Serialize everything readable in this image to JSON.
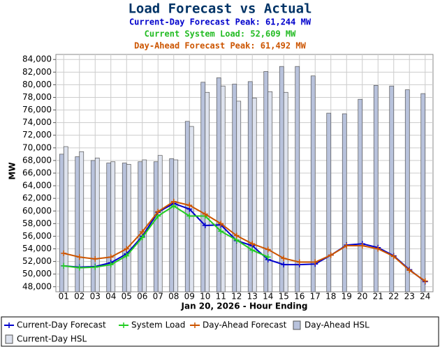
{
  "chart_data": {
    "type": "bar_line",
    "title": "Load Forecast vs Actual",
    "subtitles": [
      {
        "text": "Current-Day Forecast Peak:  61,244 MW",
        "color": "#0000cc"
      },
      {
        "text": "Current System Load:  52,609 MW",
        "color": "#22bb22"
      },
      {
        "text": "Day-Ahead Forecast Peak:  61,492 MW",
        "color": "#cc5500"
      }
    ],
    "x_label": "Jan 20, 2026 - Hour Ending",
    "y_label": "MW",
    "categories": [
      "01",
      "02",
      "03",
      "04",
      "05",
      "06",
      "07",
      "08",
      "09",
      "10",
      "11",
      "12",
      "13",
      "14",
      "15",
      "16",
      "17",
      "18",
      "19",
      "20",
      "21",
      "22",
      "23",
      "24"
    ],
    "ylim": [
      47200,
      84800
    ],
    "yticks": [
      {
        "value": 48000,
        "label": "48,000"
      },
      {
        "value": 50000,
        "label": "50,000"
      },
      {
        "value": 52000,
        "label": "52,000"
      },
      {
        "value": 54000,
        "label": "54,000"
      },
      {
        "value": 56000,
        "label": "56,000"
      },
      {
        "value": 58000,
        "label": "58,000"
      },
      {
        "value": 60000,
        "label": "60,000"
      },
      {
        "value": 62000,
        "label": "62,000"
      },
      {
        "value": 64000,
        "label": "64,000"
      },
      {
        "value": 66000,
        "label": "66,000"
      },
      {
        "value": 68000,
        "label": "68,000"
      },
      {
        "value": 70000,
        "label": "70,000"
      },
      {
        "value": 72000,
        "label": "72,000"
      },
      {
        "value": 74000,
        "label": "74,000"
      },
      {
        "value": 76000,
        "label": "76,000"
      },
      {
        "value": 78000,
        "label": "78,000"
      },
      {
        "value": 80000,
        "label": "80,000"
      },
      {
        "value": 82000,
        "label": "82,000"
      },
      {
        "value": 84000,
        "label": "84,000"
      }
    ],
    "series": [
      {
        "name": "Current-Day Forecast",
        "kind": "line",
        "color": "#0000cc",
        "values": [
          51300,
          51100,
          51200,
          51800,
          53200,
          56000,
          59800,
          61200,
          60300,
          57700,
          57800,
          55300,
          54500,
          52300,
          51500,
          51500,
          51600,
          53000,
          54600,
          54800,
          54200,
          52900,
          50700,
          48800
        ]
      },
      {
        "name": "System Load",
        "kind": "line",
        "color": "#22cc22",
        "values": [
          51300,
          51000,
          51100,
          51500,
          52900,
          55800,
          59200,
          60800,
          59200,
          59200,
          56800,
          55400,
          53800,
          52700,
          null,
          null,
          null,
          null,
          null,
          null,
          null,
          null,
          null,
          null
        ]
      },
      {
        "name": "Day-Ahead Forecast",
        "kind": "line",
        "color": "#cc5500",
        "values": [
          53300,
          52700,
          52400,
          52700,
          54000,
          56700,
          59900,
          61500,
          60900,
          59500,
          58000,
          56100,
          54800,
          53900,
          52500,
          51900,
          51900,
          53000,
          54500,
          54500,
          54000,
          52800,
          50600,
          48900
        ]
      },
      {
        "name": "Day-Ahead HSL",
        "kind": "bar",
        "color": "#b8c2dc",
        "values": [
          69000,
          68600,
          68000,
          67600,
          67600,
          67800,
          67800,
          68300,
          74200,
          80400,
          81100,
          80100,
          80500,
          82100,
          82900,
          82900,
          81400,
          75500,
          75400,
          77700,
          79900,
          79800,
          79200,
          78600
        ]
      },
      {
        "name": "Current-Day HSL",
        "kind": "bar",
        "color": "#dde2ee",
        "values": [
          70200,
          69400,
          68400,
          67800,
          67400,
          68100,
          68800,
          68100,
          73400,
          78800,
          79800,
          77400,
          77900,
          78900,
          78800,
          null,
          null,
          null,
          null,
          null,
          null,
          null,
          null,
          null
        ]
      }
    ]
  }
}
